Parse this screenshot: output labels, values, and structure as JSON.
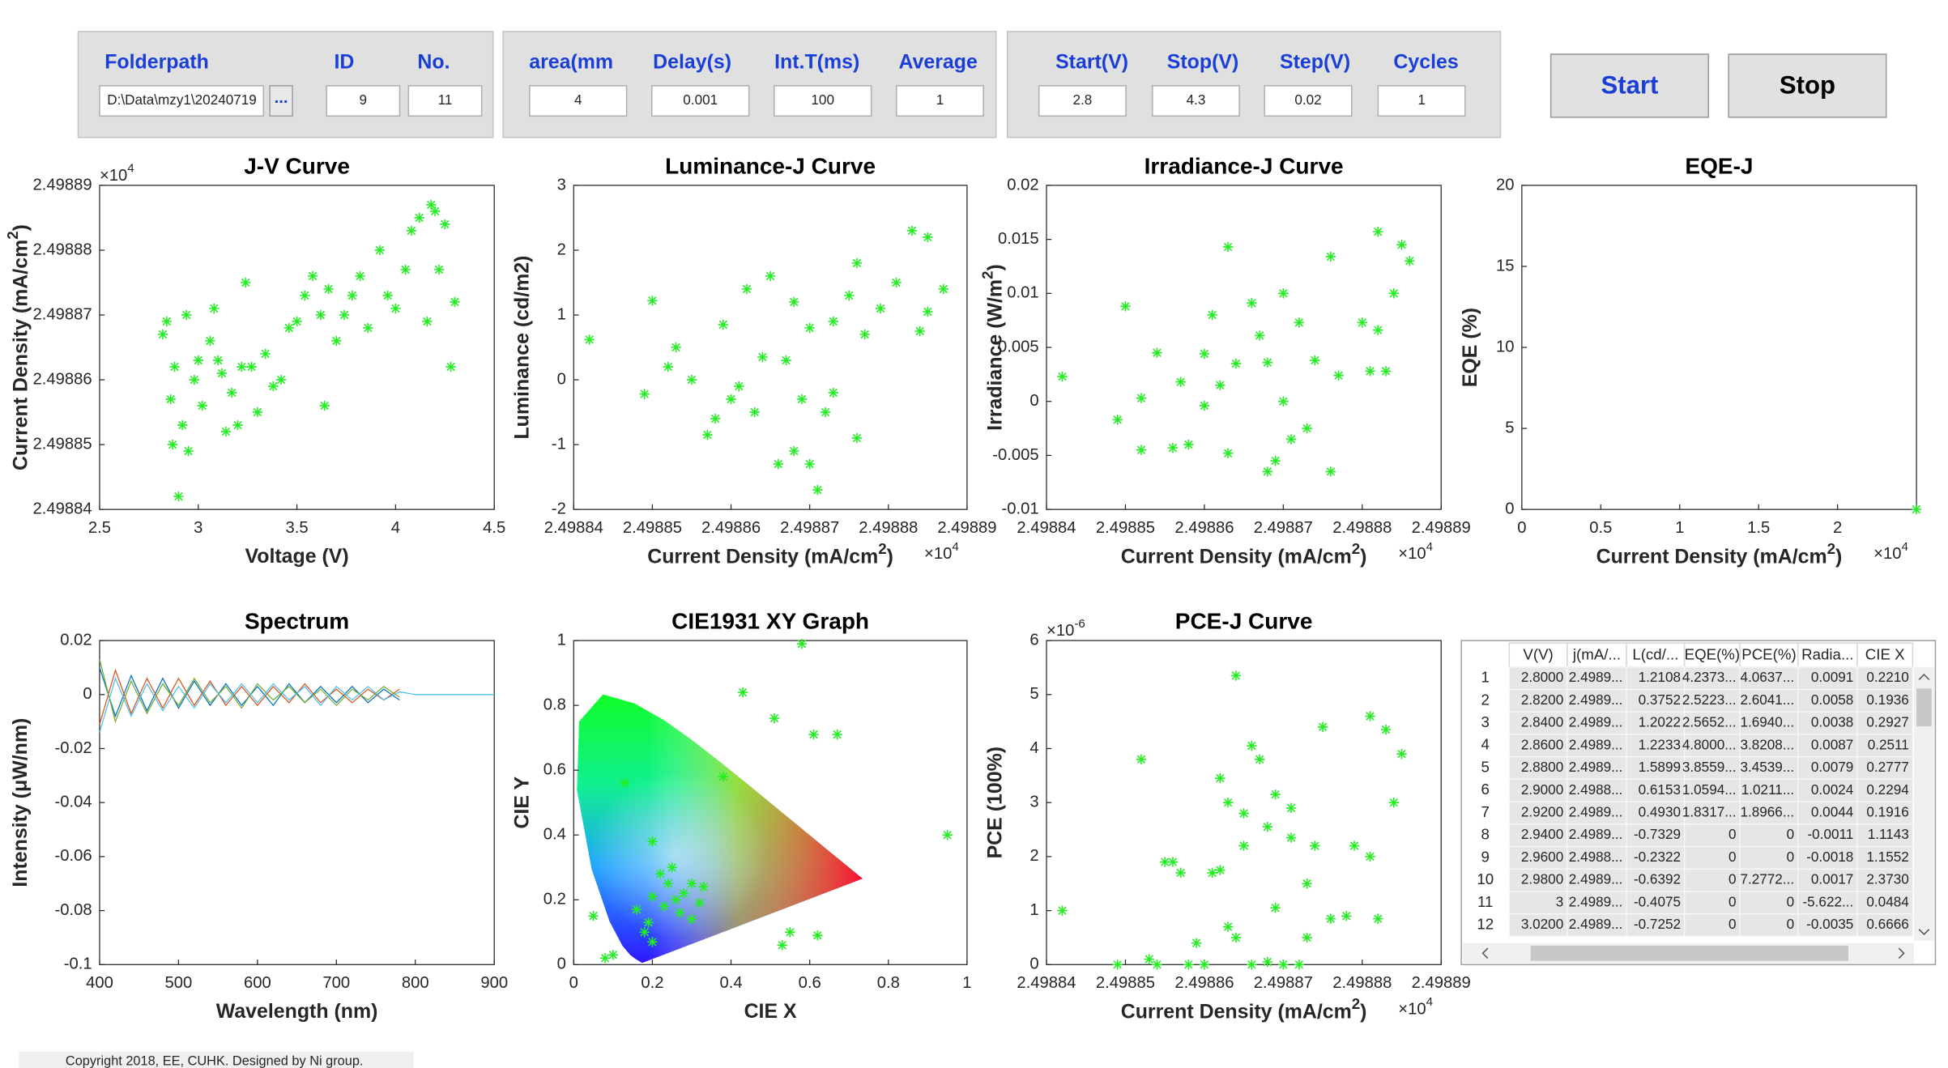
{
  "controls": {
    "panels": [
      {
        "fields": [
          {
            "label": "Folderpath",
            "value": "D:\\Data\\mzy1\\20240719"
          },
          {
            "label": "ID",
            "value": "9"
          },
          {
            "label": "No.",
            "value": "11"
          }
        ],
        "browse": "..."
      },
      {
        "fields": [
          {
            "label": "area(mm",
            "value": "4"
          },
          {
            "label": "Delay(s)",
            "value": "0.001"
          },
          {
            "label": "Int.T(ms)",
            "value": "100"
          },
          {
            "label": "Average",
            "value": "1"
          }
        ]
      },
      {
        "fields": [
          {
            "label": "Start(V)",
            "value": "2.8"
          },
          {
            "label": "Stop(V)",
            "value": "4.3"
          },
          {
            "label": "Step(V)",
            "value": "0.02"
          },
          {
            "label": "Cycles",
            "value": "1"
          }
        ]
      }
    ]
  },
  "buttons": [
    "Start",
    "Stop"
  ],
  "chart_data": [
    {
      "type": "scatter",
      "title": "J-V Curve",
      "color": "#22ee22",
      "xlabel": "Voltage (V)",
      "ylabel": {
        "text": "Current Density (mA/cm",
        "sup": "2",
        "tail": ")"
      },
      "y_multiplier": {
        "base": "×10",
        "exp": "4"
      },
      "xlim": [
        2.5,
        4.5
      ],
      "xticks": [
        2.5,
        3,
        3.5,
        4,
        4.5
      ],
      "ylim": [
        2.49884,
        2.49889
      ],
      "yticks": [
        2.49884,
        2.49885,
        2.49886,
        2.49887,
        2.49888,
        2.49889
      ],
      "x": [
        2.82,
        2.84,
        2.86,
        2.87,
        2.88,
        2.9,
        2.92,
        2.94,
        2.95,
        2.98,
        3,
        3.02,
        3.06,
        3.08,
        3.1,
        3.12,
        3.14,
        3.17,
        3.2,
        3.22,
        3.24,
        3.27,
        3.3,
        3.34,
        3.38,
        3.42,
        3.46,
        3.5,
        3.54,
        3.58,
        3.62,
        3.64,
        3.66,
        3.7,
        3.74,
        3.78,
        3.82,
        3.86,
        3.92,
        3.96,
        4,
        4.05,
        4.08,
        4.12,
        4.16,
        4.18,
        4.2,
        4.22,
        4.25,
        4.28,
        4.3
      ],
      "values": [
        2.498867,
        2.498869,
        2.498857,
        2.49885,
        2.498862,
        2.498842,
        2.498853,
        2.49887,
        2.498849,
        2.49886,
        2.498863,
        2.498856,
        2.498866,
        2.498871,
        2.498863,
        2.498861,
        2.498852,
        2.498858,
        2.498853,
        2.498862,
        2.498875,
        2.498862,
        2.498855,
        2.498864,
        2.498859,
        2.49886,
        2.498868,
        2.498869,
        2.498873,
        2.498876,
        2.49887,
        2.498856,
        2.498874,
        2.498866,
        2.49887,
        2.498873,
        2.498876,
        2.498868,
        2.49888,
        2.498873,
        2.498871,
        2.498877,
        2.498883,
        2.498885,
        2.498869,
        2.498887,
        2.498886,
        2.498877,
        2.498884,
        2.498862,
        2.498872
      ]
    },
    {
      "type": "scatter",
      "title": "Luminance-J Curve",
      "color": "#22ee22",
      "xlabel": {
        "text": "Current Density (mA/cm",
        "sup": "2",
        "tail": ")"
      },
      "ylabel": "Luminance (cd/m2)",
      "x_multiplier": {
        "base": "×10",
        "exp": "4"
      },
      "xlim": [
        2.49884,
        2.49889
      ],
      "xticks": [
        2.49884,
        2.49885,
        2.49886,
        2.49887,
        2.49888,
        2.49889
      ],
      "ylim": [
        -2,
        3
      ],
      "yticks": [
        -2,
        -1,
        0,
        1,
        2,
        3
      ],
      "x": [
        2.498842,
        2.498849,
        2.49885,
        2.498852,
        2.498853,
        2.498855,
        2.498857,
        2.498858,
        2.498859,
        2.49886,
        2.498861,
        2.498862,
        2.498863,
        2.498864,
        2.498865,
        2.498866,
        2.498867,
        2.498868,
        2.498868,
        2.498869,
        2.49887,
        2.49887,
        2.498871,
        2.498872,
        2.498873,
        2.498873,
        2.498875,
        2.498876,
        2.498876,
        2.498877,
        2.498879,
        2.498881,
        2.498883,
        2.498884,
        2.498885,
        2.498885,
        2.498887
      ],
      "values": [
        0.62,
        -0.22,
        1.22,
        0.2,
        0.5,
        0,
        -0.85,
        -0.6,
        0.85,
        -0.3,
        -0.1,
        1.4,
        -0.5,
        0.35,
        1.6,
        -1.3,
        0.3,
        1.2,
        -1.1,
        -0.3,
        -1.3,
        0.8,
        -1.7,
        -0.5,
        0.9,
        -0.2,
        1.3,
        1.8,
        -0.9,
        0.7,
        1.1,
        1.5,
        2.3,
        0.75,
        2.2,
        1.05,
        1.4
      ]
    },
    {
      "type": "scatter",
      "title": "Irradiance-J Curve",
      "color": "#22ee22",
      "xlabel": {
        "text": "Current Density (mA/cm",
        "sup": "2",
        "tail": ")"
      },
      "ylabel": {
        "text": "Irradiance (W/m",
        "sup": "2",
        "tail": ")"
      },
      "x_multiplier": {
        "base": "×10",
        "exp": "4"
      },
      "xlim": [
        2.49884,
        2.49889
      ],
      "xticks": [
        2.49884,
        2.49885,
        2.49886,
        2.49887,
        2.49888,
        2.49889
      ],
      "ylim": [
        -0.01,
        0.02
      ],
      "yticks": [
        -0.01,
        -0.005,
        0,
        0.005,
        0.01,
        0.015,
        0.02
      ],
      "x": [
        2.498842,
        2.498849,
        2.49885,
        2.498852,
        2.498852,
        2.498854,
        2.498856,
        2.498857,
        2.498858,
        2.49886,
        2.49886,
        2.498861,
        2.498862,
        2.498863,
        2.498863,
        2.498864,
        2.498866,
        2.498867,
        2.498868,
        2.498868,
        2.498869,
        2.49887,
        2.49887,
        2.498871,
        2.498872,
        2.498873,
        2.498874,
        2.498876,
        2.498876,
        2.498877,
        2.49888,
        2.498881,
        2.498882,
        2.498882,
        2.498883,
        2.498884,
        2.498885,
        2.498886
      ],
      "values": [
        0.0023,
        -0.0017,
        0.0088,
        -0.0045,
        0.0003,
        0.0045,
        -0.0043,
        0.0018,
        -0.004,
        0.0044,
        -0.0004,
        0.008,
        0.0015,
        0.0143,
        -0.0048,
        0.0035,
        0.0091,
        0.0061,
        -0.0065,
        0.0036,
        -0.0055,
        0.01,
        0,
        -0.0035,
        0.0073,
        -0.0025,
        0.0038,
        0.0134,
        -0.0065,
        0.0024,
        0.0073,
        0.0028,
        0.0066,
        0.0157,
        0.0028,
        0.01,
        0.0145,
        0.013
      ]
    },
    {
      "type": "scatter",
      "title": "EQE-J",
      "color": "#22ee22",
      "xlabel": {
        "text": "Current Density (mA/cm",
        "sup": "2",
        "tail": ")"
      },
      "ylabel": "EQE (%)",
      "x_multiplier": {
        "base": "×10",
        "exp": "4"
      },
      "xlim": [
        0,
        2.5
      ],
      "xticks": [
        0,
        0.5,
        1,
        1.5,
        2
      ],
      "ylim": [
        0,
        20
      ],
      "yticks": [
        0,
        5,
        10,
        15,
        20
      ],
      "x": [
        2.49887
      ],
      "values": [
        0
      ]
    },
    {
      "type": "line",
      "title": "Spectrum",
      "xlabel": "Wavelength (nm)",
      "ylabel": "Intensity (μW/nm)",
      "xlim": [
        400,
        900
      ],
      "xticks": [
        400,
        500,
        600,
        700,
        800,
        900
      ],
      "ylim": [
        -0.1,
        0.02
      ],
      "yticks": [
        -0.1,
        -0.08,
        -0.06,
        -0.04,
        -0.02,
        0,
        0.02
      ],
      "x": [
        400,
        420,
        440,
        460,
        480,
        500,
        520,
        540,
        560,
        580,
        600,
        620,
        640,
        660,
        680,
        700,
        720,
        740,
        760,
        780,
        800,
        820,
        840,
        860,
        880,
        900
      ],
      "series": [
        {
          "color": "#0072bd",
          "values": [
            0.01,
            -0.008,
            0.007,
            -0.006,
            0.006,
            -0.005,
            0.005,
            -0.004,
            0.004,
            -0.004,
            0.003,
            -0.004,
            0.004,
            -0.003,
            0.003,
            -0.003,
            0.003,
            -0.003,
            0.002,
            -0.002,
            null,
            null,
            null,
            null,
            null,
            null
          ]
        },
        {
          "color": "#d95319",
          "values": [
            -0.011,
            0.009,
            -0.007,
            0.006,
            -0.005,
            0.006,
            -0.004,
            0.005,
            -0.004,
            0.003,
            -0.004,
            0.003,
            -0.003,
            0.004,
            -0.003,
            0.002,
            -0.003,
            0.002,
            -0.002,
            0.002,
            null,
            null,
            null,
            null,
            null,
            null
          ]
        },
        {
          "color": "#77ac30",
          "values": [
            0.013,
            -0.01,
            0.005,
            -0.007,
            0.004,
            -0.004,
            0.006,
            -0.003,
            0.003,
            -0.005,
            0.004,
            -0.002,
            0.003,
            -0.003,
            0.002,
            -0.004,
            0.002,
            -0.002,
            0.003,
            -0.001,
            null,
            null,
            null,
            null,
            null,
            null
          ]
        },
        {
          "color": "#4dbeee",
          "values": [
            -0.014,
            0.006,
            -0.008,
            0.004,
            -0.006,
            0.003,
            -0.005,
            0.004,
            -0.003,
            0.004,
            -0.003,
            0.004,
            -0.002,
            0.003,
            -0.004,
            0.003,
            -0.002,
            0.003,
            -0.002,
            0.001,
            0,
            0,
            0,
            0,
            0,
            0
          ]
        }
      ]
    },
    {
      "type": "scatter",
      "title": "CIE1931 XY Graph",
      "color": "#22ee22",
      "xlabel": "CIE X",
      "ylabel": "CIE Y",
      "xlim": [
        0,
        1
      ],
      "xticks": [
        0,
        0.2,
        0.4,
        0.6,
        0.8,
        1
      ],
      "ylim": [
        0,
        1
      ],
      "yticks": [
        0,
        0.2,
        0.4,
        0.6,
        0.8,
        1
      ],
      "x": [
        0.05,
        0.08,
        0.1,
        0.13,
        0.16,
        0.18,
        0.19,
        0.2,
        0.2,
        0.2,
        0.22,
        0.23,
        0.24,
        0.25,
        0.26,
        0.27,
        0.28,
        0.3,
        0.3,
        0.32,
        0.33,
        0.38,
        0.43,
        0.51,
        0.53,
        0.55,
        0.58,
        0.61,
        0.62,
        0.67,
        0.95
      ],
      "values": [
        0.15,
        0.02,
        0.03,
        0.56,
        0.17,
        0.1,
        0.13,
        0.21,
        0.38,
        0.07,
        0.28,
        0.18,
        0.25,
        0.3,
        0.2,
        0.16,
        0.22,
        0.25,
        0.14,
        0.19,
        0.24,
        0.58,
        0.84,
        0.76,
        0.06,
        0.1,
        0.99,
        0.71,
        0.09,
        0.71,
        0.4
      ]
    },
    {
      "type": "scatter",
      "title": "PCE-J Curve",
      "color": "#22ee22",
      "xlabel": {
        "text": "Current Density (mA/cm",
        "sup": "2",
        "tail": ")"
      },
      "ylabel": "PCE (100%)",
      "x_multiplier": {
        "base": "×10",
        "exp": "4"
      },
      "y_multiplier": {
        "base": "×10",
        "exp": "-6"
      },
      "xlim": [
        2.49884,
        2.49889
      ],
      "xticks": [
        2.49884,
        2.49885,
        2.49886,
        2.49887,
        2.49888,
        2.49889
      ],
      "ylim": [
        0,
        6
      ],
      "yticks": [
        0,
        1,
        2,
        3,
        4,
        5,
        6
      ],
      "x": [
        2.498842,
        2.498852,
        2.498849,
        2.498853,
        2.498855,
        2.498856,
        2.498857,
        2.498858,
        2.498859,
        2.498861,
        2.498862,
        2.498862,
        2.498863,
        2.498863,
        2.498864,
        2.498864,
        2.498865,
        2.498865,
        2.498866,
        2.498866,
        2.498867,
        2.498868,
        2.498868,
        2.498869,
        2.498869,
        2.49887,
        2.498871,
        2.498871,
        2.498872,
        2.498873,
        2.498873,
        2.498874,
        2.498875,
        2.498876,
        2.498878,
        2.498879,
        2.498881,
        2.498881,
        2.498882,
        2.498883,
        2.498884,
        2.498885,
        2.49886,
        2.498854
      ],
      "values": [
        1,
        3.8,
        0,
        0.1,
        1.9,
        1.9,
        1.7,
        0,
        0.4,
        1.7,
        1.75,
        3.45,
        0.7,
        3,
        5.35,
        0.5,
        2.8,
        2.2,
        0,
        4.05,
        3.8,
        0.05,
        2.55,
        3.15,
        1.05,
        0,
        2.9,
        2.35,
        0,
        1.5,
        0.5,
        2.2,
        4.4,
        0.85,
        0.9,
        2.2,
        4.6,
        2,
        0.85,
        4.35,
        3,
        3.9,
        0,
        0
      ]
    }
  ],
  "table": {
    "columns": [
      "V(V)",
      "j(mA/...",
      "L(cd/...",
      "EQE(%)",
      "PCE(%)",
      "Radia...",
      "CIE X"
    ],
    "row_labels": [
      "1",
      "2",
      "3",
      "4",
      "5",
      "6",
      "7",
      "8",
      "9",
      "10",
      "11",
      "12"
    ],
    "rows": [
      [
        "2.8000",
        "2.4989...",
        "1.2108",
        "4.2373...",
        "4.0637...",
        "0.0091",
        "0.2210"
      ],
      [
        "2.8200",
        "2.4989...",
        "0.3752",
        "2.5223...",
        "2.6041...",
        "0.0058",
        "0.1936"
      ],
      [
        "2.8400",
        "2.4989...",
        "1.2022",
        "2.5652...",
        "1.6940...",
        "0.0038",
        "0.2927"
      ],
      [
        "2.8600",
        "2.4989...",
        "1.2233",
        "4.8000...",
        "3.8208...",
        "0.0087",
        "0.2511"
      ],
      [
        "2.8800",
        "2.4989...",
        "1.5899",
        "3.8559...",
        "3.4539...",
        "0.0079",
        "0.2777"
      ],
      [
        "2.9000",
        "2.4988...",
        "0.6153",
        "1.0594...",
        "1.0211...",
        "0.0024",
        "0.2294"
      ],
      [
        "2.9200",
        "2.4989...",
        "0.4930",
        "1.8317...",
        "1.8966...",
        "0.0044",
        "0.1916"
      ],
      [
        "2.9400",
        "2.4989...",
        "-0.7329",
        "0",
        "0",
        "-0.0011",
        "1.1143"
      ],
      [
        "2.9600",
        "2.4988...",
        "-0.2322",
        "0",
        "0",
        "-0.0018",
        "1.1552"
      ],
      [
        "2.9800",
        "2.4989...",
        "-0.6392",
        "0",
        "7.2772...",
        "0.0017",
        "2.3730"
      ],
      [
        "3",
        "2.4989...",
        "-0.4075",
        "0",
        "0",
        "-5.622...",
        "0.0484"
      ],
      [
        "3.0200",
        "2.4989...",
        "-0.7252",
        "0",
        "0",
        "-0.0035",
        "0.6666"
      ]
    ]
  },
  "footer": "Copyright 2018, EE, CUHK. Designed by Ni group."
}
